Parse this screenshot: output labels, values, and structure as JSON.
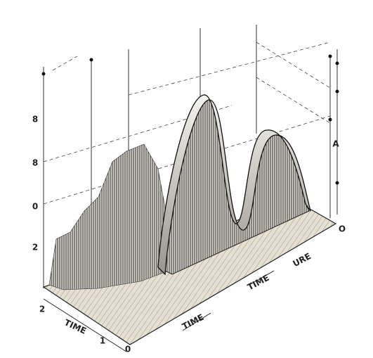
{
  "left_axis_labels": [
    "8",
    "8",
    "0",
    "2"
  ],
  "right_axis_label": "A",
  "right_end_label": "O",
  "front_labels": [
    "2",
    "1",
    "0"
  ],
  "time_labels": [
    "TIME",
    "TIME",
    "TIME"
  ],
  "ure_label": "URE"
}
